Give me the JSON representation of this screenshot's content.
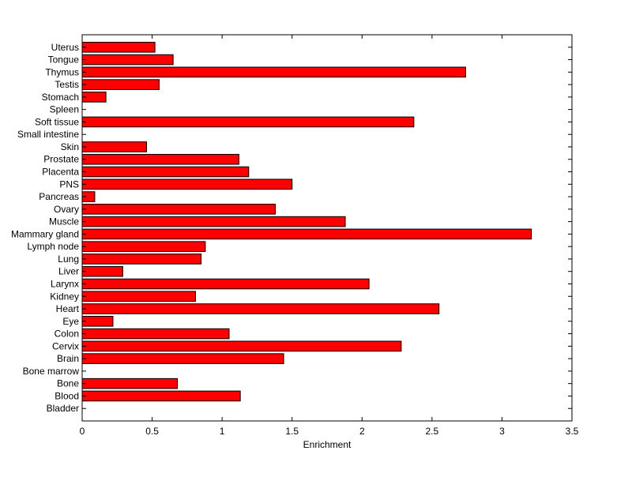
{
  "chart_data": {
    "type": "bar",
    "orientation": "horizontal",
    "title": "",
    "xlabel": "Enrichment",
    "ylabel": "",
    "xlim": [
      0,
      3.5
    ],
    "xticks": [
      "0",
      "0.5",
      "1",
      "1.5",
      "2",
      "2.5",
      "3",
      "3.5"
    ],
    "grid": false,
    "bar_color": "#ff0000",
    "bar_edge_color": "#000000",
    "categories": [
      "Bladder",
      "Blood",
      "Bone",
      "Bone marrow",
      "Brain",
      "Cervix",
      "Colon",
      "Eye",
      "Heart",
      "Kidney",
      "Larynx",
      "Liver",
      "Lung",
      "Lymph node",
      "Mammary gland",
      "Muscle",
      "Ovary",
      "Pancreas",
      "PNS",
      "Placenta",
      "Prostate",
      "Skin",
      "Small intestine",
      "Soft tissue",
      "Spleen",
      "Stomach",
      "Testis",
      "Thymus",
      "Tongue",
      "Uterus"
    ],
    "values": [
      0,
      1.13,
      0.68,
      0,
      1.44,
      2.28,
      1.05,
      0.22,
      2.55,
      0.81,
      2.05,
      0.29,
      0.85,
      0.88,
      3.21,
      1.88,
      1.38,
      0.09,
      1.5,
      1.19,
      1.12,
      0.46,
      0,
      2.37,
      0,
      0.17,
      0.55,
      2.74,
      0.65,
      0.52
    ]
  }
}
